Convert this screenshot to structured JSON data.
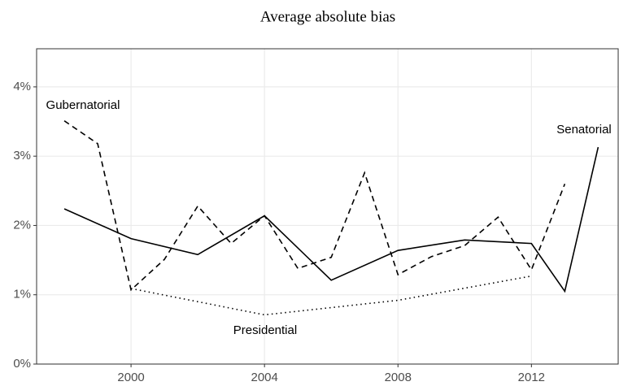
{
  "chart_data": {
    "type": "line",
    "title": "Average absolute bias",
    "xlim": [
      1997.17,
      2014.6
    ],
    "xticks": [
      2000,
      2004,
      2008,
      2012
    ],
    "ylim": [
      0,
      4.55
    ],
    "yticks": [
      {
        "value": 0,
        "label": "0%"
      },
      {
        "value": 1,
        "label": "1%"
      },
      {
        "value": 2,
        "label": "2%"
      },
      {
        "value": 3,
        "label": "3%"
      },
      {
        "value": 4,
        "label": "4%"
      }
    ],
    "grid": true,
    "series": [
      {
        "name": "Gubernatorial",
        "color": "#000000",
        "dash": "dashed",
        "x": [
          1998,
          1999,
          2000,
          2001,
          2002,
          2003,
          2004,
          2005,
          2006,
          2007,
          2008,
          2009,
          2010,
          2011,
          2012,
          2013
        ],
        "values": [
          3.51,
          3.18,
          1.07,
          1.51,
          2.28,
          1.74,
          2.14,
          1.38,
          1.54,
          2.76,
          1.29,
          1.55,
          1.71,
          2.12,
          1.36,
          2.6
        ]
      },
      {
        "name": "Senatorial",
        "color": "#000000",
        "dash": "solid",
        "x": [
          1998,
          2000,
          2002,
          2004,
          2006,
          2008,
          2010,
          2012,
          2013,
          2014
        ],
        "values": [
          2.24,
          1.81,
          1.58,
          2.14,
          1.21,
          1.64,
          1.79,
          1.74,
          1.05,
          3.13
        ]
      },
      {
        "name": "Presidential",
        "color": "#000000",
        "dash": "dotted",
        "x": [
          2000,
          2004,
          2008,
          2012
        ],
        "values": [
          1.09,
          0.71,
          0.92,
          1.27
        ]
      }
    ]
  }
}
